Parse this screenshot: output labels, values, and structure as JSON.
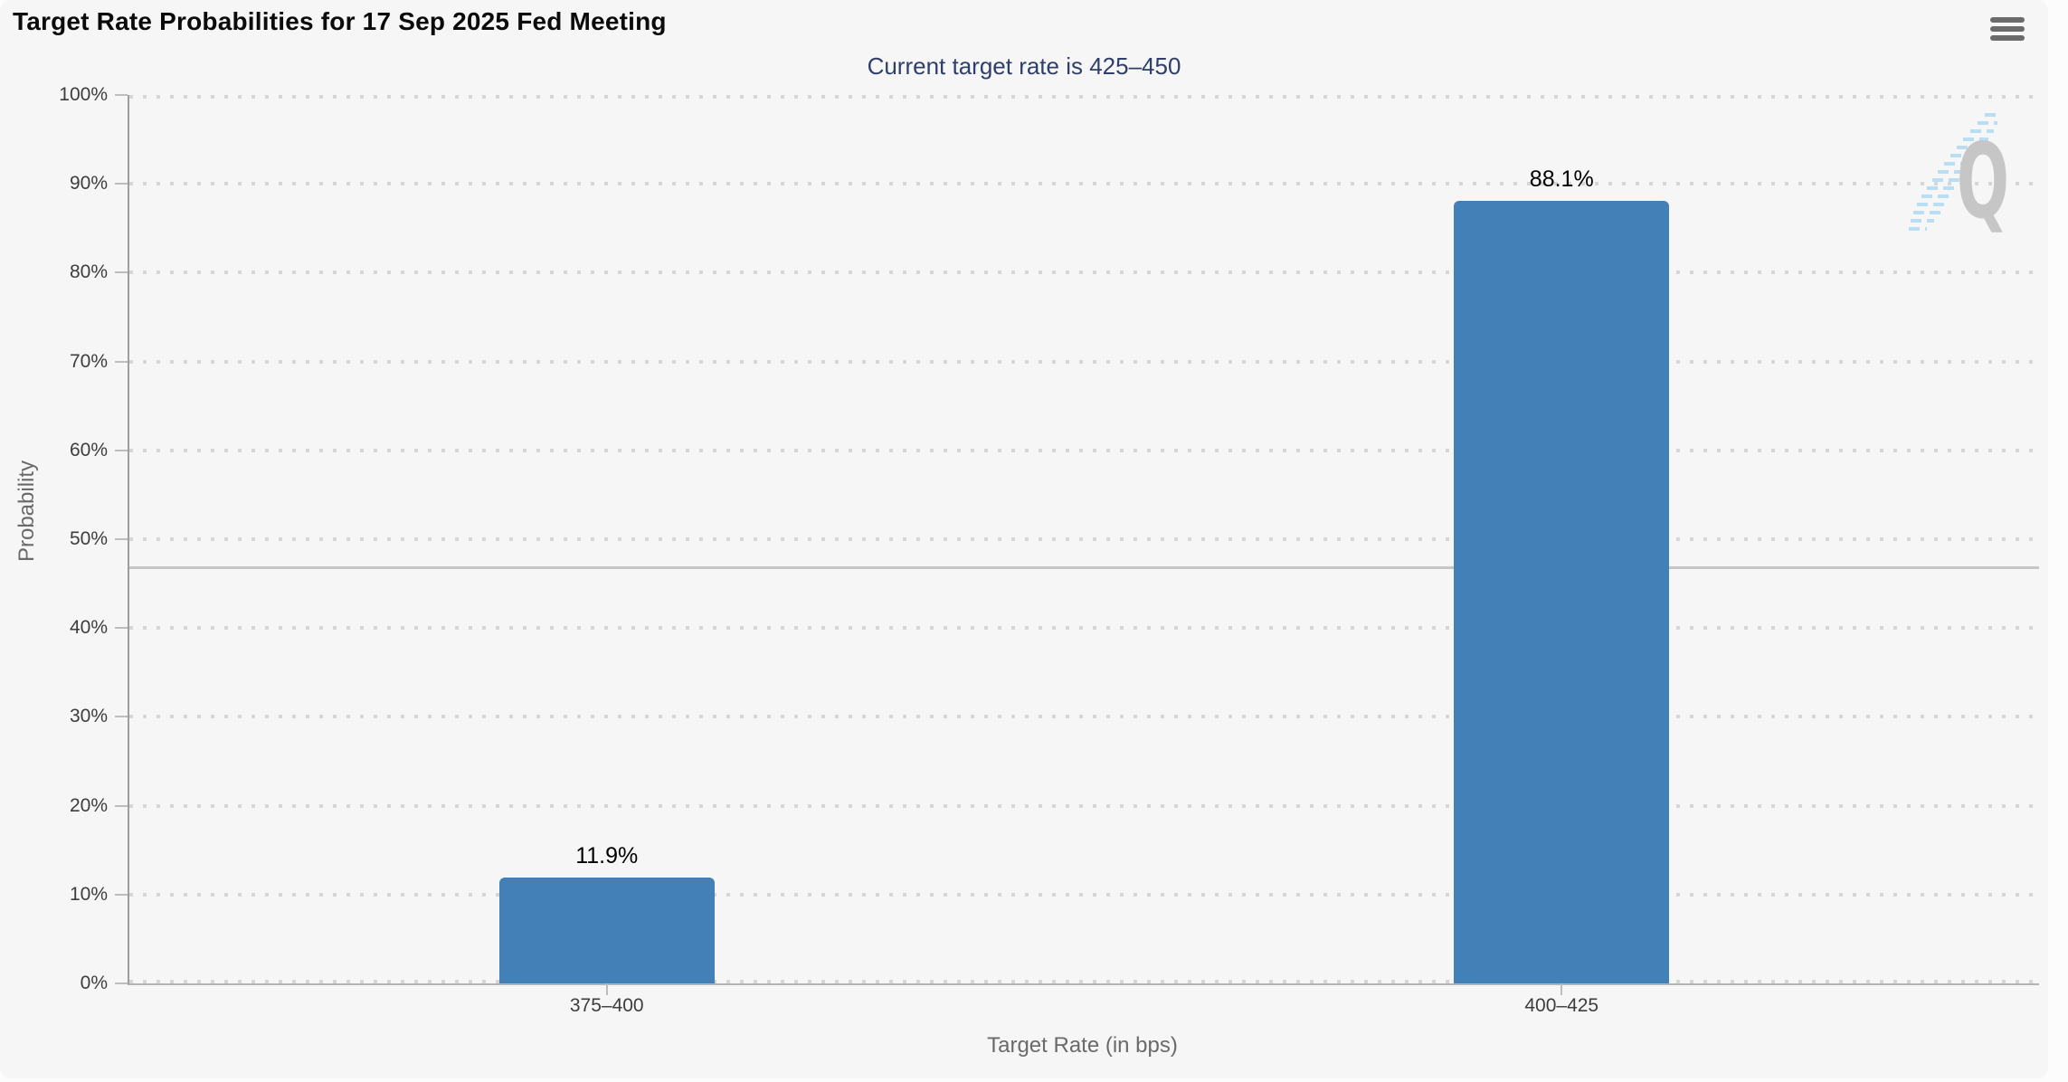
{
  "header": {
    "menu_icon": "hamburger-icon"
  },
  "chart_data": {
    "type": "bar",
    "title": "Target Rate Probabilities for 17 Sep 2025 Fed Meeting",
    "subtitle": "Current target rate is 425–450",
    "current_target_rate": "425–450",
    "categories": [
      "375–400",
      "400–425"
    ],
    "values": [
      11.9,
      88.1
    ],
    "data_labels": [
      "11.9%",
      "88.1%"
    ],
    "xlabel": "Target Rate (in bps)",
    "ylabel": "Probability",
    "ylim": [
      0,
      100
    ],
    "yticks": [
      0,
      10,
      20,
      30,
      40,
      50,
      60,
      70,
      80,
      90,
      100
    ],
    "ytick_labels": [
      "0%",
      "10%",
      "20%",
      "30%",
      "40%",
      "50%",
      "60%",
      "70%",
      "80%",
      "90%",
      "100%"
    ],
    "grid": "horizontal-dotted",
    "legend": "none",
    "reference_line_value": 46.8
  },
  "watermark": {
    "letter": "Q"
  },
  "colors": {
    "page_background": "#fcfcfc",
    "card_background": "#f6f6f7",
    "bar": "#4280b7",
    "subtitle_text": "#2e3f69",
    "grid_dots": "#d6d6d6",
    "reference_line": "#c6c6c6",
    "tick_label": "#3d3d3d",
    "axis_title": "#6a6a6a",
    "menu_icon": "#6b6b6b",
    "watermark_q": "#c6c6c6",
    "watermark_hatch": "#b9ddf3"
  }
}
